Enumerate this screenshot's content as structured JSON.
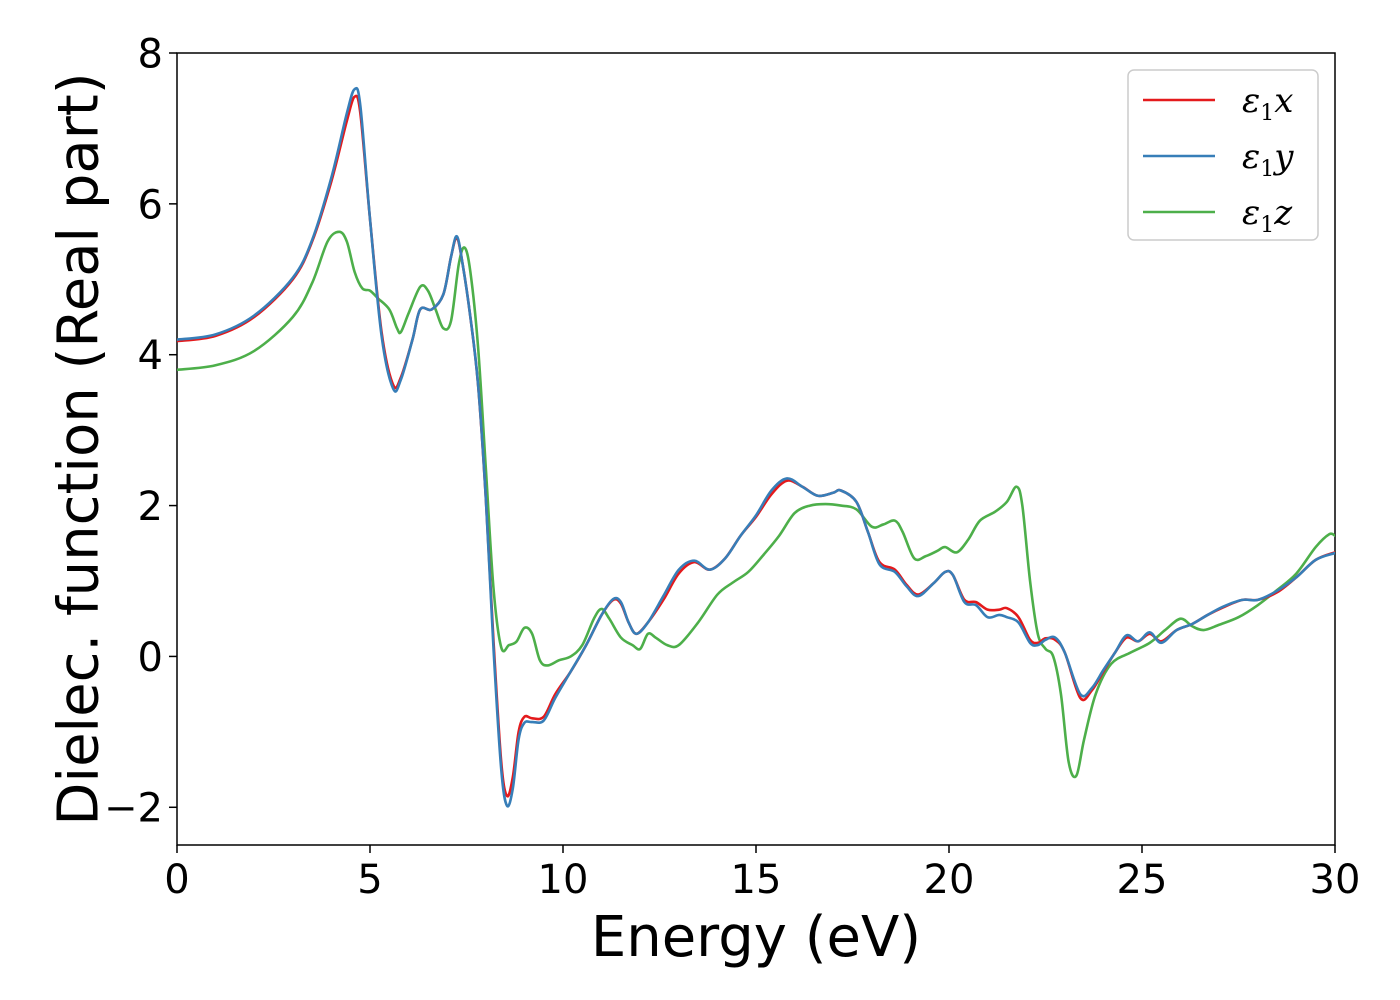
{
  "chart_data": {
    "type": "line",
    "title": "",
    "xlabel": "Energy (eV)",
    "ylabel": "Dielec. function (Real part)",
    "xlim": [
      0,
      30
    ],
    "ylim": [
      -2.5,
      8
    ],
    "xticks": [
      0,
      5,
      10,
      15,
      20,
      25,
      30
    ],
    "xtick_labels": [
      "0",
      "5",
      "10",
      "15",
      "20",
      "25",
      "30"
    ],
    "yticks": [
      -2,
      0,
      2,
      4,
      6,
      8
    ],
    "ytick_labels": [
      "−2",
      "0",
      "2",
      "4",
      "6",
      "8"
    ],
    "grid": false,
    "legend_position": "top-right",
    "series": [
      {
        "name": "ε₁x",
        "legend_base": "ε",
        "legend_sub": "1",
        "legend_var": "x",
        "color": "#e41a1c",
        "points": [
          [
            0,
            4.18
          ],
          [
            1,
            4.25
          ],
          [
            2,
            4.5
          ],
          [
            3,
            5.0
          ],
          [
            3.5,
            5.5
          ],
          [
            4,
            6.3
          ],
          [
            4.4,
            7.1
          ],
          [
            4.6,
            7.42
          ],
          [
            4.75,
            7.2
          ],
          [
            5,
            5.8
          ],
          [
            5.3,
            4.3
          ],
          [
            5.6,
            3.6
          ],
          [
            5.8,
            3.7
          ],
          [
            6.1,
            4.2
          ],
          [
            6.3,
            4.6
          ],
          [
            6.6,
            4.6
          ],
          [
            6.9,
            4.8
          ],
          [
            7.1,
            5.3
          ],
          [
            7.25,
            5.55
          ],
          [
            7.4,
            5.2
          ],
          [
            7.6,
            4.5
          ],
          [
            7.8,
            3.6
          ],
          [
            8.0,
            2.1
          ],
          [
            8.2,
            0.2
          ],
          [
            8.4,
            -1.4
          ],
          [
            8.55,
            -1.85
          ],
          [
            8.7,
            -1.6
          ],
          [
            8.85,
            -1.0
          ],
          [
            9.0,
            -0.8
          ],
          [
            9.2,
            -0.82
          ],
          [
            9.5,
            -0.8
          ],
          [
            9.8,
            -0.5
          ],
          [
            10.2,
            -0.2
          ],
          [
            10.6,
            0.15
          ],
          [
            11.0,
            0.55
          ],
          [
            11.3,
            0.75
          ],
          [
            11.5,
            0.7
          ],
          [
            11.7,
            0.45
          ],
          [
            11.9,
            0.3
          ],
          [
            12.2,
            0.45
          ],
          [
            12.6,
            0.75
          ],
          [
            13.0,
            1.1
          ],
          [
            13.4,
            1.25
          ],
          [
            13.8,
            1.15
          ],
          [
            14.2,
            1.3
          ],
          [
            14.6,
            1.6
          ],
          [
            15.0,
            1.85
          ],
          [
            15.4,
            2.15
          ],
          [
            15.8,
            2.33
          ],
          [
            16.2,
            2.25
          ],
          [
            16.6,
            2.13
          ],
          [
            17.0,
            2.17
          ],
          [
            17.2,
            2.2
          ],
          [
            17.6,
            2.05
          ],
          [
            17.9,
            1.65
          ],
          [
            18.2,
            1.25
          ],
          [
            18.6,
            1.15
          ],
          [
            18.9,
            0.95
          ],
          [
            19.2,
            0.82
          ],
          [
            19.6,
            0.97
          ],
          [
            19.9,
            1.12
          ],
          [
            20.1,
            1.08
          ],
          [
            20.4,
            0.75
          ],
          [
            20.7,
            0.72
          ],
          [
            21.0,
            0.62
          ],
          [
            21.3,
            0.62
          ],
          [
            21.5,
            0.64
          ],
          [
            21.8,
            0.52
          ],
          [
            22.1,
            0.22
          ],
          [
            22.3,
            0.18
          ],
          [
            22.5,
            0.24
          ],
          [
            22.75,
            0.22
          ],
          [
            23.0,
            0.05
          ],
          [
            23.4,
            -0.55
          ],
          [
            23.7,
            -0.45
          ],
          [
            24.0,
            -0.2
          ],
          [
            24.3,
            0.05
          ],
          [
            24.6,
            0.25
          ],
          [
            24.9,
            0.2
          ],
          [
            25.2,
            0.3
          ],
          [
            25.5,
            0.2
          ],
          [
            25.9,
            0.35
          ],
          [
            26.3,
            0.43
          ],
          [
            26.7,
            0.55
          ],
          [
            27.1,
            0.65
          ],
          [
            27.6,
            0.75
          ],
          [
            28.0,
            0.75
          ],
          [
            28.5,
            0.85
          ],
          [
            29.0,
            1.05
          ],
          [
            29.5,
            1.28
          ],
          [
            30.0,
            1.38
          ]
        ]
      },
      {
        "name": "ε₁y",
        "legend_base": "ε",
        "legend_sub": "1",
        "legend_var": "y",
        "color": "#377eb8",
        "points": [
          [
            0,
            4.2
          ],
          [
            1,
            4.27
          ],
          [
            2,
            4.52
          ],
          [
            3,
            5.02
          ],
          [
            3.5,
            5.52
          ],
          [
            4,
            6.35
          ],
          [
            4.4,
            7.2
          ],
          [
            4.6,
            7.52
          ],
          [
            4.75,
            7.3
          ],
          [
            5,
            5.8
          ],
          [
            5.3,
            4.25
          ],
          [
            5.6,
            3.55
          ],
          [
            5.8,
            3.67
          ],
          [
            6.1,
            4.2
          ],
          [
            6.3,
            4.6
          ],
          [
            6.6,
            4.6
          ],
          [
            6.9,
            4.8
          ],
          [
            7.1,
            5.3
          ],
          [
            7.25,
            5.57
          ],
          [
            7.4,
            5.2
          ],
          [
            7.6,
            4.5
          ],
          [
            7.8,
            3.6
          ],
          [
            8.0,
            2.1
          ],
          [
            8.2,
            0.1
          ],
          [
            8.4,
            -1.5
          ],
          [
            8.55,
            -1.98
          ],
          [
            8.7,
            -1.75
          ],
          [
            8.85,
            -1.1
          ],
          [
            9.0,
            -0.88
          ],
          [
            9.2,
            -0.87
          ],
          [
            9.5,
            -0.85
          ],
          [
            9.8,
            -0.55
          ],
          [
            10.2,
            -0.2
          ],
          [
            10.6,
            0.15
          ],
          [
            11.0,
            0.55
          ],
          [
            11.3,
            0.76
          ],
          [
            11.5,
            0.72
          ],
          [
            11.7,
            0.45
          ],
          [
            11.9,
            0.3
          ],
          [
            12.2,
            0.45
          ],
          [
            12.6,
            0.8
          ],
          [
            13.0,
            1.15
          ],
          [
            13.4,
            1.27
          ],
          [
            13.8,
            1.15
          ],
          [
            14.2,
            1.3
          ],
          [
            14.6,
            1.6
          ],
          [
            15.0,
            1.87
          ],
          [
            15.4,
            2.2
          ],
          [
            15.8,
            2.36
          ],
          [
            16.2,
            2.25
          ],
          [
            16.6,
            2.13
          ],
          [
            17.0,
            2.17
          ],
          [
            17.2,
            2.2
          ],
          [
            17.6,
            2.05
          ],
          [
            17.9,
            1.65
          ],
          [
            18.2,
            1.22
          ],
          [
            18.6,
            1.12
          ],
          [
            18.9,
            0.93
          ],
          [
            19.2,
            0.8
          ],
          [
            19.6,
            0.97
          ],
          [
            19.9,
            1.12
          ],
          [
            20.1,
            1.08
          ],
          [
            20.4,
            0.72
          ],
          [
            20.7,
            0.68
          ],
          [
            21.0,
            0.52
          ],
          [
            21.3,
            0.55
          ],
          [
            21.5,
            0.52
          ],
          [
            21.8,
            0.45
          ],
          [
            22.1,
            0.18
          ],
          [
            22.3,
            0.15
          ],
          [
            22.5,
            0.22
          ],
          [
            22.75,
            0.25
          ],
          [
            23.0,
            0.05
          ],
          [
            23.4,
            -0.5
          ],
          [
            23.7,
            -0.42
          ],
          [
            24.0,
            -0.18
          ],
          [
            24.3,
            0.05
          ],
          [
            24.6,
            0.28
          ],
          [
            24.9,
            0.2
          ],
          [
            25.2,
            0.32
          ],
          [
            25.5,
            0.18
          ],
          [
            25.9,
            0.35
          ],
          [
            26.3,
            0.43
          ],
          [
            26.7,
            0.55
          ],
          [
            27.1,
            0.66
          ],
          [
            27.6,
            0.75
          ],
          [
            28.0,
            0.75
          ],
          [
            28.5,
            0.87
          ],
          [
            29.0,
            1.05
          ],
          [
            29.5,
            1.28
          ],
          [
            30.0,
            1.37
          ]
        ]
      },
      {
        "name": "ε₁z",
        "legend_base": "ε",
        "legend_sub": "1",
        "legend_var": "z",
        "color": "#4daf4a",
        "points": [
          [
            0,
            3.8
          ],
          [
            1,
            3.86
          ],
          [
            2,
            4.05
          ],
          [
            3,
            4.5
          ],
          [
            3.5,
            4.95
          ],
          [
            3.9,
            5.5
          ],
          [
            4.2,
            5.63
          ],
          [
            4.4,
            5.5
          ],
          [
            4.6,
            5.1
          ],
          [
            4.8,
            4.88
          ],
          [
            5.0,
            4.85
          ],
          [
            5.2,
            4.75
          ],
          [
            5.5,
            4.6
          ],
          [
            5.7,
            4.35
          ],
          [
            5.8,
            4.3
          ],
          [
            6.0,
            4.55
          ],
          [
            6.3,
            4.9
          ],
          [
            6.5,
            4.85
          ],
          [
            6.7,
            4.6
          ],
          [
            6.9,
            4.35
          ],
          [
            7.1,
            4.45
          ],
          [
            7.3,
            5.2
          ],
          [
            7.45,
            5.42
          ],
          [
            7.6,
            5.1
          ],
          [
            7.8,
            4.1
          ],
          [
            8.0,
            2.5
          ],
          [
            8.2,
            0.9
          ],
          [
            8.4,
            0.12
          ],
          [
            8.6,
            0.15
          ],
          [
            8.8,
            0.2
          ],
          [
            9.0,
            0.38
          ],
          [
            9.2,
            0.3
          ],
          [
            9.4,
            -0.05
          ],
          [
            9.6,
            -0.12
          ],
          [
            9.9,
            -0.05
          ],
          [
            10.2,
            0.0
          ],
          [
            10.5,
            0.15
          ],
          [
            10.8,
            0.5
          ],
          [
            11.0,
            0.63
          ],
          [
            11.2,
            0.5
          ],
          [
            11.5,
            0.25
          ],
          [
            11.8,
            0.15
          ],
          [
            12.0,
            0.1
          ],
          [
            12.2,
            0.3
          ],
          [
            12.4,
            0.25
          ],
          [
            12.7,
            0.15
          ],
          [
            13.0,
            0.15
          ],
          [
            13.5,
            0.45
          ],
          [
            14.0,
            0.82
          ],
          [
            14.4,
            0.98
          ],
          [
            14.8,
            1.12
          ],
          [
            15.2,
            1.35
          ],
          [
            15.6,
            1.6
          ],
          [
            16.0,
            1.9
          ],
          [
            16.4,
            2.0
          ],
          [
            16.8,
            2.02
          ],
          [
            17.2,
            2.0
          ],
          [
            17.6,
            1.95
          ],
          [
            18.0,
            1.72
          ],
          [
            18.3,
            1.75
          ],
          [
            18.6,
            1.8
          ],
          [
            18.8,
            1.65
          ],
          [
            19.1,
            1.3
          ],
          [
            19.4,
            1.33
          ],
          [
            19.7,
            1.4
          ],
          [
            19.9,
            1.45
          ],
          [
            20.2,
            1.38
          ],
          [
            20.5,
            1.55
          ],
          [
            20.8,
            1.8
          ],
          [
            21.2,
            1.92
          ],
          [
            21.5,
            2.05
          ],
          [
            21.75,
            2.25
          ],
          [
            21.9,
            2.0
          ],
          [
            22.1,
            1.0
          ],
          [
            22.3,
            0.3
          ],
          [
            22.5,
            0.1
          ],
          [
            22.7,
            0.0
          ],
          [
            22.9,
            -0.5
          ],
          [
            23.1,
            -1.4
          ],
          [
            23.3,
            -1.58
          ],
          [
            23.5,
            -1.1
          ],
          [
            23.8,
            -0.5
          ],
          [
            24.2,
            -0.1
          ],
          [
            24.7,
            0.05
          ],
          [
            25.2,
            0.18
          ],
          [
            25.6,
            0.35
          ],
          [
            26.0,
            0.5
          ],
          [
            26.3,
            0.4
          ],
          [
            26.6,
            0.35
          ],
          [
            27.0,
            0.42
          ],
          [
            27.5,
            0.52
          ],
          [
            28.0,
            0.68
          ],
          [
            28.5,
            0.88
          ],
          [
            29.0,
            1.1
          ],
          [
            29.5,
            1.45
          ],
          [
            29.85,
            1.62
          ],
          [
            30.0,
            1.6
          ]
        ]
      }
    ]
  }
}
